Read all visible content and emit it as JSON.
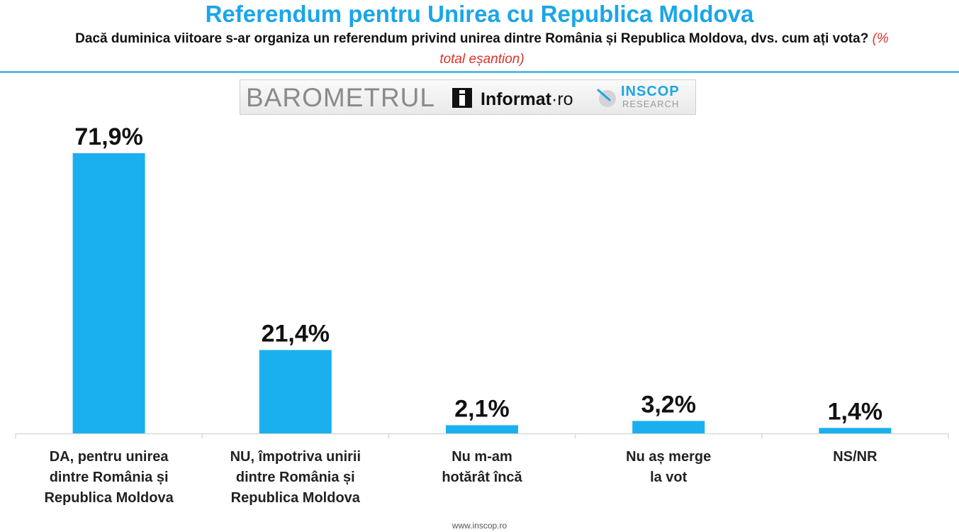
{
  "header": {
    "title": "Referendum pentru Unirea cu Republica Moldova",
    "subtitle": "Dacă duminica viitoare s-ar organiza un referendum privind unirea dintre România și Republica Moldova, dvs. cum ați vota?",
    "subtitle_note": "(% total eșantion)"
  },
  "logos": {
    "barometrul": "BAROMETRUL",
    "informat": "Informat",
    "informat_suffix": "·ro",
    "inscop": "INSCOP",
    "research": "RESEARCH",
    "informat_icon": "info-i-icon",
    "inscop_icon": "inscop-compass-icon"
  },
  "colors": {
    "bar": "#1ab0ef",
    "title": "#1aa6e8",
    "divider": "#5cb9e8",
    "note": "#d9342b",
    "axis": "#d9d9d9",
    "text": "#111111"
  },
  "chart_data": {
    "type": "bar",
    "categories": [
      [
        "DA, pentru unirea",
        "dintre România și",
        "Republica Moldova"
      ],
      [
        "NU, împotriva unirii",
        "dintre România și",
        "Republica Moldova"
      ],
      [
        "Nu m-am",
        "hotărât încă"
      ],
      [
        "Nu aș merge",
        "la vot"
      ],
      [
        "NS/NR"
      ]
    ],
    "values": [
      71.9,
      21.4,
      2.1,
      3.2,
      1.4
    ],
    "data_labels": [
      "71,9%",
      "21,4%",
      "2,1%",
      "3,2%",
      "1,4%"
    ],
    "unit": "%",
    "ylim": [
      0,
      100
    ],
    "grid": false,
    "legend": "none"
  },
  "footer": "www.inscop.ro"
}
